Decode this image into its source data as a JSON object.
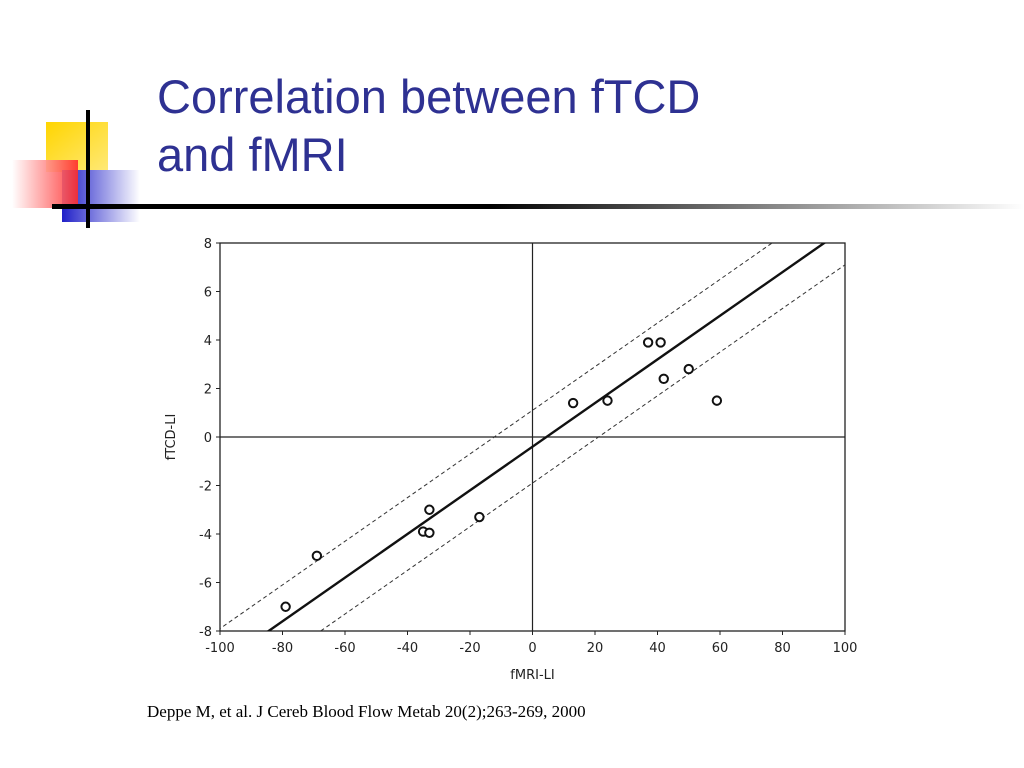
{
  "slide": {
    "title_line1": "Correlation between fTCD",
    "title_line2": "and fMRI",
    "citation": "Deppe M, et al. J Cereb Blood Flow Metab 20(2);263-269, 2000"
  },
  "colors": {
    "title": "#2e3192",
    "deco_yellow": "#ffd500",
    "deco_red": "#ff3b3b",
    "deco_blue": "#2020c8",
    "deco_line": "#000000"
  },
  "chart_data": {
    "type": "scatter",
    "xlabel": "fMRI-LI",
    "ylabel": "fTCD-LI",
    "xlim": [
      -100,
      100
    ],
    "ylim": [
      -8,
      8
    ],
    "xticks": [
      -100,
      -80,
      -60,
      -40,
      -20,
      0,
      20,
      40,
      60,
      80,
      100
    ],
    "yticks": [
      -8,
      -6,
      -4,
      -2,
      0,
      2,
      4,
      6,
      8
    ],
    "grid": false,
    "zero_lines": true,
    "points": [
      {
        "x": -79,
        "y": -7.0
      },
      {
        "x": -69,
        "y": -4.9
      },
      {
        "x": -35,
        "y": -3.9
      },
      {
        "x": -33,
        "y": -3.0
      },
      {
        "x": -33,
        "y": -3.95
      },
      {
        "x": -17,
        "y": -3.3
      },
      {
        "x": 13,
        "y": 1.4
      },
      {
        "x": 24,
        "y": 1.5
      },
      {
        "x": 37,
        "y": 3.9
      },
      {
        "x": 41,
        "y": 3.9
      },
      {
        "x": 42,
        "y": 2.4
      },
      {
        "x": 50,
        "y": 2.8
      },
      {
        "x": 59,
        "y": 1.5
      }
    ],
    "regression": {
      "slope": 0.09,
      "intercept": -0.4
    },
    "confidence_band": {
      "offset": 1.5
    }
  }
}
